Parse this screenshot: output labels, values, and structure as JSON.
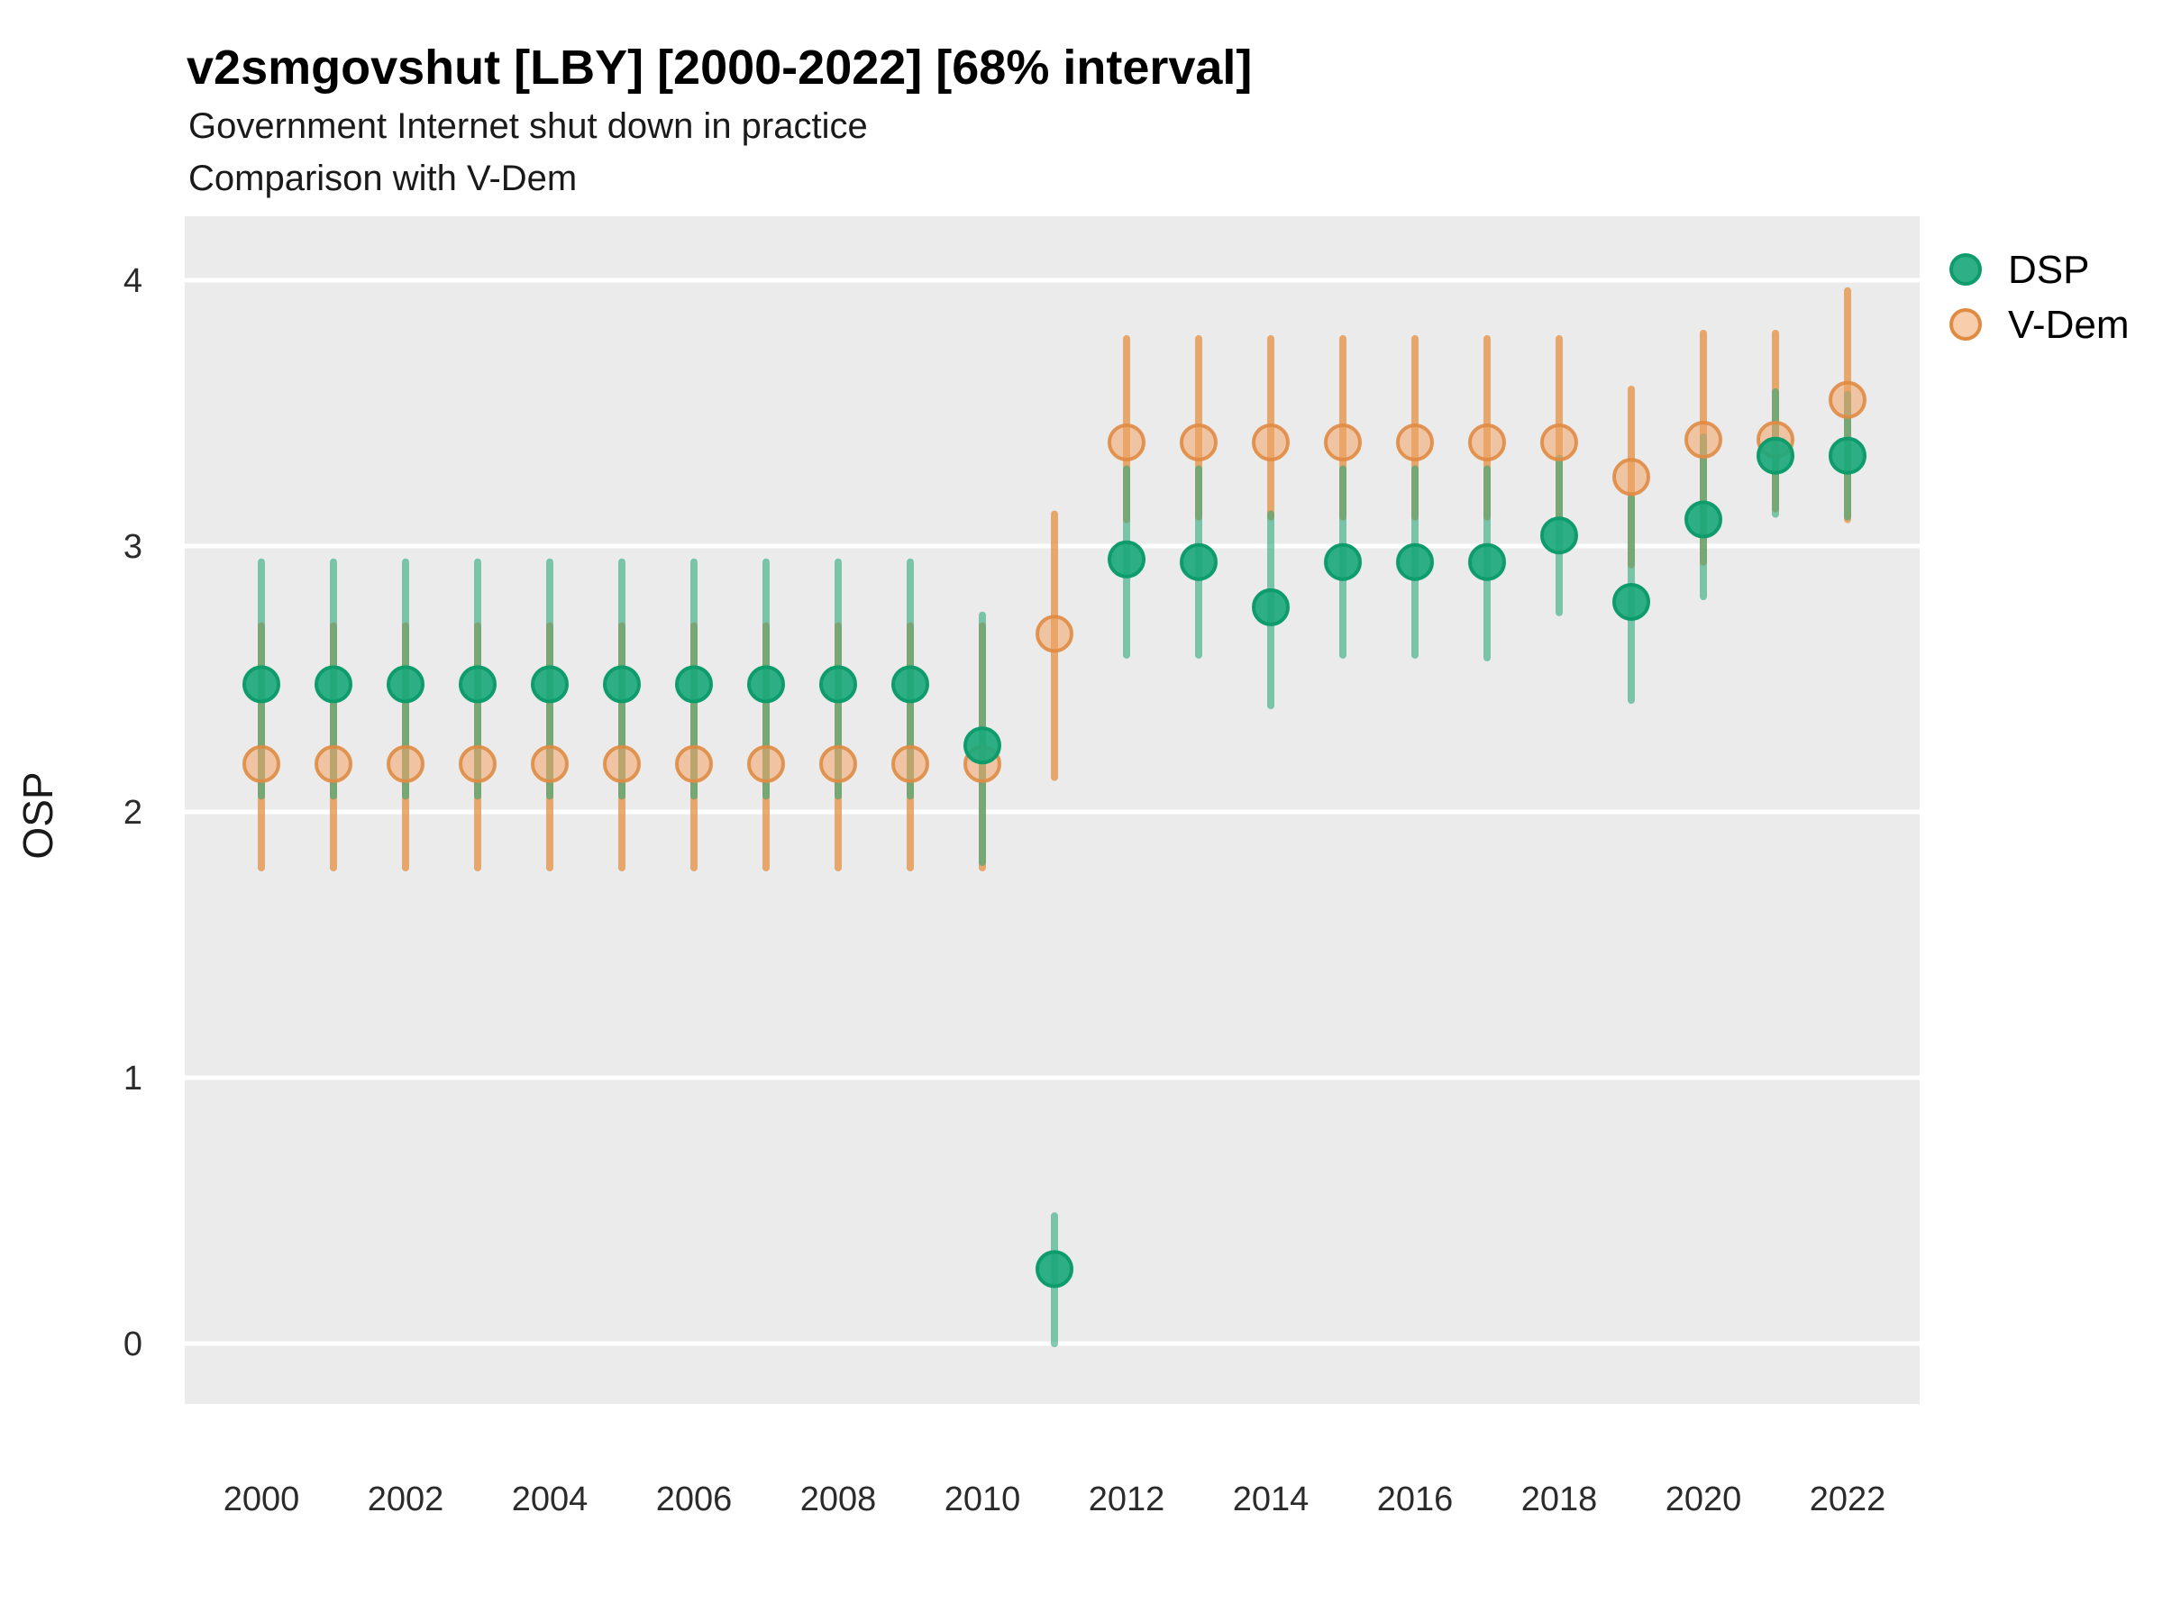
{
  "header": {
    "title": "v2smgovshut [LBY] [2000-2022] [68% interval]",
    "subtitle1": "Government Internet shut down in practice",
    "subtitle2": "Comparison with V-Dem"
  },
  "colors": {
    "panel_background": "#EBEBEB",
    "grid_line": "#FFFFFF",
    "text": "#1A1A1A",
    "tick_label": "#2B2B2B",
    "dsp_point": "#1CA87B",
    "dsp_point_border": "#0E9C6C",
    "dsp_interval": "rgba(47,166,124,0.60)",
    "vdem_point": "#F0A468",
    "vdem_point_border": "#E08B42",
    "vdem_interval": "rgba(226,140,58,0.72)"
  },
  "chart_data": {
    "type": "scatter",
    "title": "v2smgovshut [LBY] [2000-2022] [68% interval]",
    "subtitle": [
      "Government Internet shut down in practice",
      "Comparison with V-Dem"
    ],
    "interval_label": "68% interval",
    "xlabel": "",
    "ylabel": "OSP",
    "ylim": [
      -0.25,
      4.25
    ],
    "yticks": [
      0,
      1,
      2,
      3,
      4
    ],
    "xticks": [
      2000,
      2002,
      2004,
      2006,
      2008,
      2010,
      2012,
      2014,
      2016,
      2018,
      2020,
      2022
    ],
    "grid": "horizontal-major-only",
    "legend_position": "right",
    "x": [
      2000,
      2001,
      2002,
      2003,
      2004,
      2005,
      2006,
      2007,
      2008,
      2009,
      2010,
      2011,
      2012,
      2013,
      2014,
      2015,
      2016,
      2017,
      2018,
      2019,
      2020,
      2021,
      2022
    ],
    "series": [
      {
        "name": "DSP",
        "values": [
          2.48,
          2.48,
          2.48,
          2.48,
          2.48,
          2.48,
          2.48,
          2.48,
          2.48,
          2.48,
          2.25,
          0.28,
          2.95,
          2.94,
          2.77,
          2.94,
          2.94,
          2.94,
          3.04,
          2.79,
          3.1,
          3.34,
          3.34
        ],
        "lower": [
          2.06,
          2.06,
          2.06,
          2.06,
          2.06,
          2.06,
          2.06,
          2.06,
          2.06,
          2.06,
          1.81,
          0.0,
          2.59,
          2.59,
          2.4,
          2.59,
          2.59,
          2.58,
          2.75,
          2.42,
          2.81,
          3.12,
          3.11
        ],
        "upper": [
          2.94,
          2.94,
          2.94,
          2.94,
          2.94,
          2.94,
          2.94,
          2.94,
          2.94,
          2.94,
          2.74,
          0.48,
          3.29,
          3.29,
          3.12,
          3.29,
          3.29,
          3.29,
          3.33,
          3.18,
          3.41,
          3.58,
          3.57
        ]
      },
      {
        "name": "V-Dem",
        "values": [
          2.18,
          2.18,
          2.18,
          2.18,
          2.18,
          2.18,
          2.18,
          2.18,
          2.18,
          2.18,
          2.18,
          2.67,
          3.39,
          3.39,
          3.39,
          3.39,
          3.39,
          3.39,
          3.39,
          3.26,
          3.4,
          3.4,
          3.55
        ],
        "lower": [
          1.79,
          1.79,
          1.79,
          1.79,
          1.79,
          1.79,
          1.79,
          1.79,
          1.79,
          1.79,
          1.79,
          2.13,
          3.1,
          3.11,
          3.11,
          3.11,
          3.11,
          3.11,
          3.11,
          2.93,
          2.94,
          3.14,
          3.1
        ],
        "upper": [
          2.7,
          2.7,
          2.7,
          2.7,
          2.7,
          2.7,
          2.7,
          2.7,
          2.7,
          2.7,
          2.7,
          3.12,
          3.78,
          3.78,
          3.78,
          3.78,
          3.78,
          3.78,
          3.78,
          3.59,
          3.8,
          3.8,
          3.96
        ]
      }
    ]
  }
}
